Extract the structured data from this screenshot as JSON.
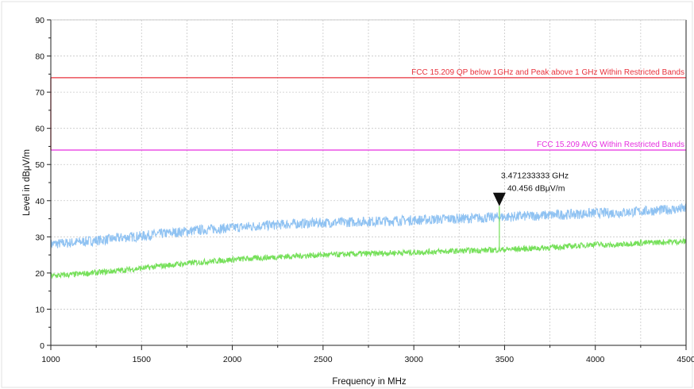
{
  "chart_data": {
    "type": "line",
    "xlabel": "Frequency in MHz",
    "ylabel": "Level in dBμV/m",
    "xlim": [
      1000,
      4500
    ],
    "ylim": [
      0,
      90
    ],
    "x_ticks": [
      1000,
      1500,
      2000,
      2500,
      3000,
      3500,
      4000,
      4500
    ],
    "y_ticks": [
      0,
      10,
      20,
      30,
      40,
      50,
      60,
      70,
      80,
      90
    ],
    "grid": true,
    "limits": [
      {
        "name": "FCC 15.209 QP below 1GHz and Peak above 1 GHz Within Restricted Bands",
        "value": 74,
        "color": "#e8323c"
      },
      {
        "name": "FCC 15.209 AVG Within Restricted Bands",
        "value": 54,
        "color": "#e62fe0"
      }
    ],
    "series": [
      {
        "color": "#8fc2f2",
        "x": [
          1000,
          1100,
          1200,
          1300,
          1400,
          1500,
          1600,
          1700,
          1800,
          1900,
          2000,
          2100,
          2200,
          2300,
          2400,
          2500,
          2600,
          2700,
          2800,
          2900,
          3000,
          3100,
          3200,
          3300,
          3400,
          3500,
          3600,
          3700,
          3800,
          3900,
          4000,
          4100,
          4200,
          4300,
          4400,
          4500
        ],
        "y": [
          28,
          28.3,
          28.8,
          29.2,
          29.8,
          30.2,
          30.8,
          31.3,
          31.8,
          32.2,
          32.5,
          32.9,
          33.2,
          33.5,
          33.7,
          33.9,
          34.0,
          34.2,
          34.3,
          34.5,
          34.6,
          34.8,
          35.0,
          35.1,
          35.3,
          35.5,
          35.7,
          35.9,
          36.1,
          36.3,
          36.6,
          36.6,
          36.9,
          37.2,
          37.5,
          37.8
        ]
      },
      {
        "color": "#76e05a",
        "x": [
          1000,
          1100,
          1200,
          1300,
          1400,
          1500,
          1600,
          1700,
          1800,
          1900,
          2000,
          2100,
          2200,
          2300,
          2400,
          2500,
          2600,
          2700,
          2800,
          2900,
          3000,
          3100,
          3200,
          3300,
          3400,
          3500,
          3600,
          3700,
          3800,
          3900,
          4000,
          4100,
          4200,
          4300,
          4400,
          4500
        ],
        "y": [
          19.2,
          19.5,
          19.9,
          20.3,
          20.8,
          21.3,
          21.9,
          22.4,
          22.9,
          23.3,
          23.7,
          24.0,
          24.3,
          24.6,
          24.8,
          25.0,
          25.1,
          25.3,
          25.4,
          25.6,
          25.7,
          25.9,
          26.0,
          26.2,
          26.3,
          26.5,
          26.7,
          26.9,
          27.2,
          27.5,
          28.0,
          27.6,
          28.2,
          28.4,
          28.6,
          28.7
        ]
      }
    ],
    "marker": {
      "x": 3471.233333,
      "y": 40.456,
      "label_freq": "3.471233333 GHz",
      "label_level": "40.456 dBμV/m"
    }
  }
}
